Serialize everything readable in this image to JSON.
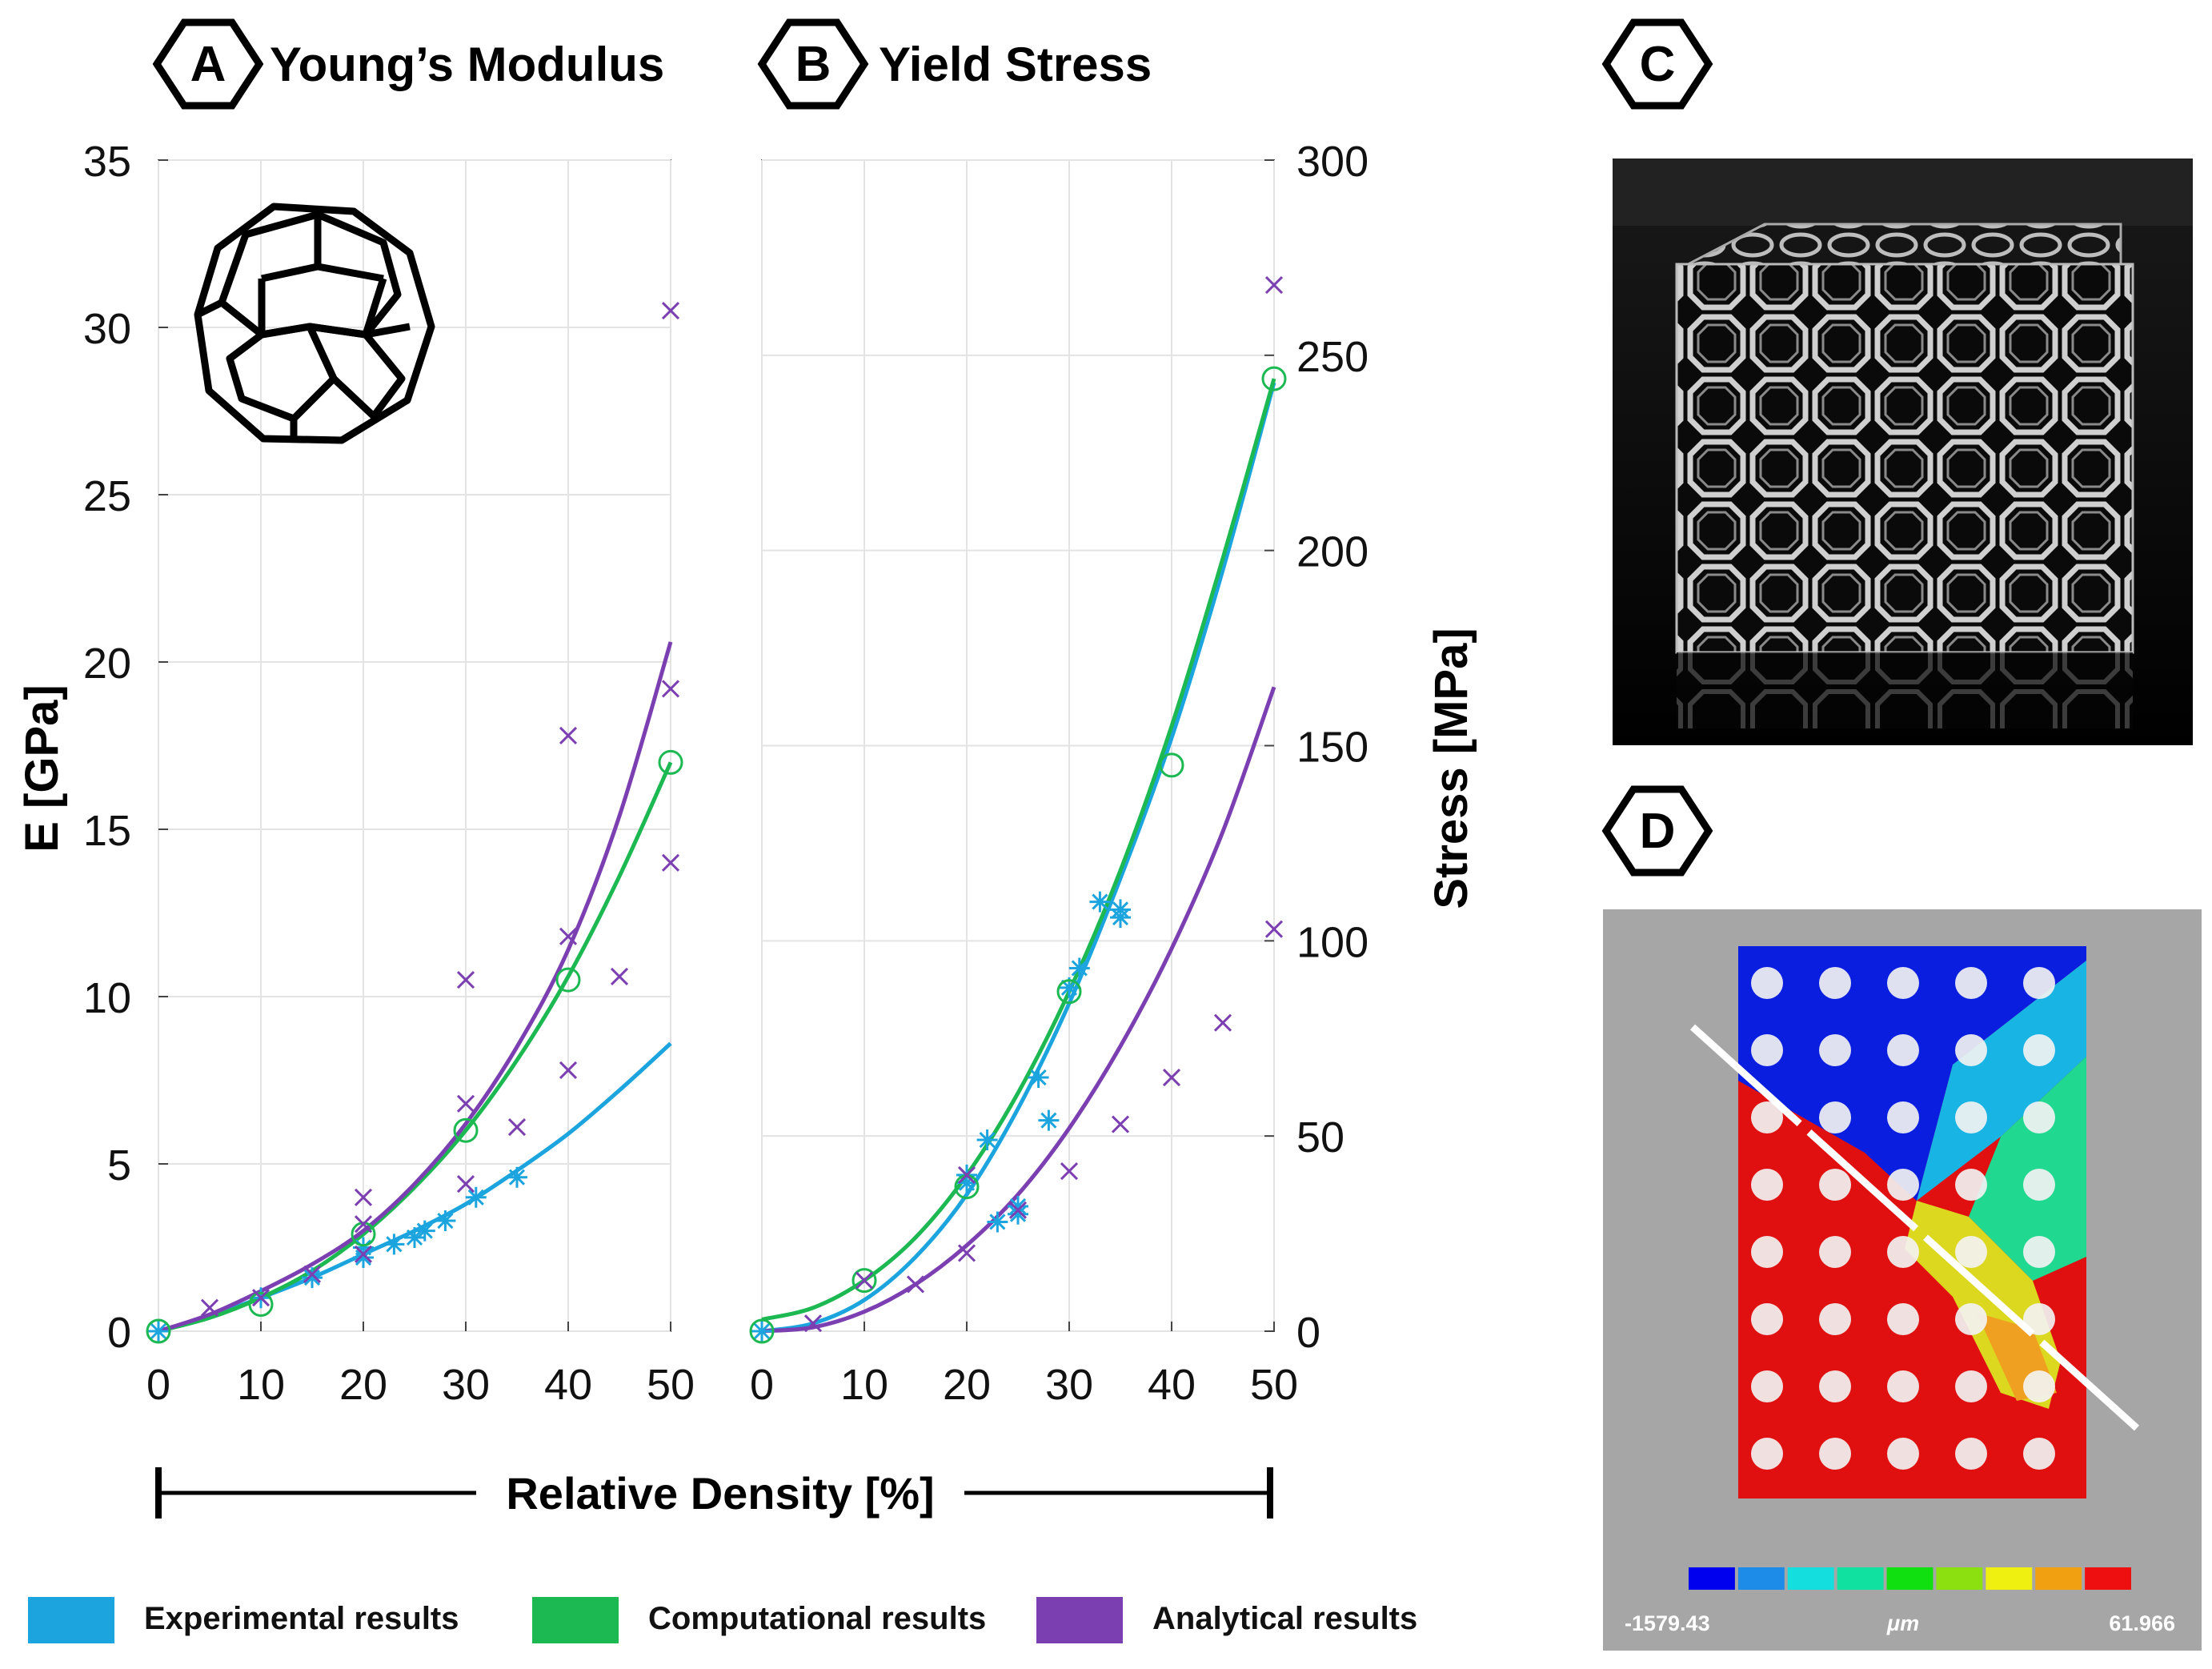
{
  "figure": {
    "panel_letters": [
      "A",
      "B",
      "C",
      "D"
    ],
    "shared_xlabel": "Relative Density [%]",
    "legend": [
      {
        "label": "Experimental results",
        "color": "#1ba4de"
      },
      {
        "label": "Computational results",
        "color": "#1cb852"
      },
      {
        "label": "Analytical results",
        "color": "#7b3fb2"
      }
    ],
    "colorbar": {
      "min_label": "-1579.43",
      "unit_label": "μm",
      "max_label": "61.966",
      "colors": [
        "#0000ee",
        "#1c8ce8",
        "#15dede",
        "#10e0a0",
        "#10e010",
        "#8ce010",
        "#f0f010",
        "#f0a010",
        "#ee1010"
      ]
    },
    "icons": {
      "polyhedron": "truncated-octahedron-icon",
      "photo": "lattice-cube-photo",
      "fem": "displacement-contour-plot"
    }
  },
  "chart_data": [
    {
      "type": "scatter",
      "panel": "A",
      "title": "Young’s Modulus",
      "xlabel": "",
      "ylabel": "E [GPa]",
      "xlim": [
        0,
        50
      ],
      "ylim": [
        0,
        35
      ],
      "xticks": [
        0,
        10,
        20,
        30,
        40,
        50
      ],
      "yticks": [
        0,
        5,
        10,
        15,
        20,
        25,
        30,
        35
      ],
      "grid": true,
      "series": [
        {
          "name": "Experimental results",
          "kind": "points",
          "marker": "asterisk",
          "color": "#1ba4de",
          "x": [
            0,
            10,
            15,
            20,
            20,
            23,
            25,
            26,
            28,
            31,
            35
          ],
          "y": [
            0,
            1.0,
            1.6,
            2.2,
            2.5,
            2.6,
            2.8,
            3.0,
            3.3,
            4.0,
            4.6
          ]
        },
        {
          "name": "Experimental results",
          "kind": "fit",
          "color": "#1ba4de",
          "x": [
            0,
            5,
            10,
            15,
            20,
            25,
            30,
            35,
            40,
            45,
            50
          ],
          "y": [
            0,
            0.45,
            1.0,
            1.6,
            2.3,
            3.0,
            3.8,
            4.8,
            5.9,
            7.2,
            8.6
          ]
        },
        {
          "name": "Computational results",
          "kind": "points",
          "marker": "circle",
          "color": "#1cb852",
          "x": [
            0,
            10,
            20,
            30,
            40,
            50
          ],
          "y": [
            0,
            0.8,
            2.9,
            6.0,
            10.5,
            17.0
          ]
        },
        {
          "name": "Computational results",
          "kind": "fit",
          "color": "#1cb852",
          "x": [
            0,
            5,
            10,
            15,
            20,
            25,
            30,
            35,
            40,
            45,
            50
          ],
          "y": [
            0,
            0.4,
            1.0,
            1.8,
            2.9,
            4.3,
            6.0,
            8.1,
            10.6,
            13.6,
            17.0
          ]
        },
        {
          "name": "Analytical results",
          "kind": "points",
          "marker": "x",
          "color": "#7b3fb2",
          "x": [
            5,
            10,
            15,
            20,
            20,
            20,
            30,
            30,
            30,
            35,
            40,
            40,
            40,
            45,
            50,
            50,
            50
          ],
          "y": [
            0.7,
            1.0,
            1.7,
            4.0,
            3.2,
            2.3,
            10.5,
            6.8,
            4.4,
            6.1,
            17.8,
            11.8,
            7.8,
            10.6,
            30.5,
            19.2,
            14.0
          ]
        },
        {
          "name": "Analytical results",
          "kind": "fit",
          "color": "#7b3fb2",
          "x": [
            0,
            5,
            10,
            15,
            20,
            25,
            30,
            35,
            40,
            45,
            50
          ],
          "y": [
            0,
            0.5,
            1.2,
            2.0,
            3.0,
            4.4,
            6.2,
            8.5,
            11.4,
            15.4,
            20.6
          ]
        }
      ]
    },
    {
      "type": "scatter",
      "panel": "B",
      "title": "Yield Stress",
      "xlabel": "",
      "ylabel": "Stress [MPa]",
      "xlim": [
        0,
        50
      ],
      "ylim": [
        0,
        300
      ],
      "xticks": [
        0,
        10,
        20,
        30,
        40,
        50
      ],
      "yticks": [
        0,
        50,
        100,
        150,
        200,
        250,
        300
      ],
      "grid": true,
      "series": [
        {
          "name": "Experimental results",
          "kind": "points",
          "marker": "asterisk",
          "color": "#1ba4de",
          "x": [
            0,
            20,
            20,
            22,
            23,
            25,
            25,
            27,
            28,
            30,
            31,
            33,
            35,
            35
          ],
          "y": [
            0,
            38,
            40,
            49,
            28,
            30,
            32,
            65,
            54,
            88,
            93,
            110,
            108,
            106
          ]
        },
        {
          "name": "Experimental results",
          "kind": "fit",
          "color": "#1ba4de",
          "x": [
            0,
            5,
            10,
            15,
            20,
            25,
            30,
            35,
            40,
            45,
            50
          ],
          "y": [
            0,
            2,
            8,
            19,
            35,
            57,
            84,
            116,
            152,
            195,
            243
          ]
        },
        {
          "name": "Computational results",
          "kind": "points",
          "marker": "circle",
          "color": "#1cb852",
          "x": [
            0,
            10,
            20,
            30,
            40,
            50
          ],
          "y": [
            0,
            13,
            37,
            87,
            145,
            244
          ]
        },
        {
          "name": "Computational results",
          "kind": "fit",
          "color": "#1cb852",
          "x": [
            0,
            5,
            10,
            15,
            20,
            25,
            30,
            35,
            40,
            45,
            50
          ],
          "y": [
            3,
            6,
            13,
            24,
            40,
            61,
            87,
            118,
            155,
            198,
            244
          ]
        },
        {
          "name": "Analytical results",
          "kind": "points",
          "marker": "x",
          "color": "#7b3fb2",
          "x": [
            5,
            10,
            15,
            20,
            20,
            25,
            30,
            35,
            40,
            45,
            50,
            50
          ],
          "y": [
            2,
            13,
            12,
            20,
            40,
            31,
            41,
            53,
            65,
            79,
            268,
            103
          ]
        },
        {
          "name": "Analytical results",
          "kind": "fit",
          "color": "#7b3fb2",
          "x": [
            0,
            5,
            10,
            15,
            20,
            25,
            30,
            35,
            40,
            45,
            50
          ],
          "y": [
            0,
            1,
            5,
            12,
            22,
            35,
            52,
            73,
            98,
            128,
            165
          ]
        }
      ]
    }
  ]
}
